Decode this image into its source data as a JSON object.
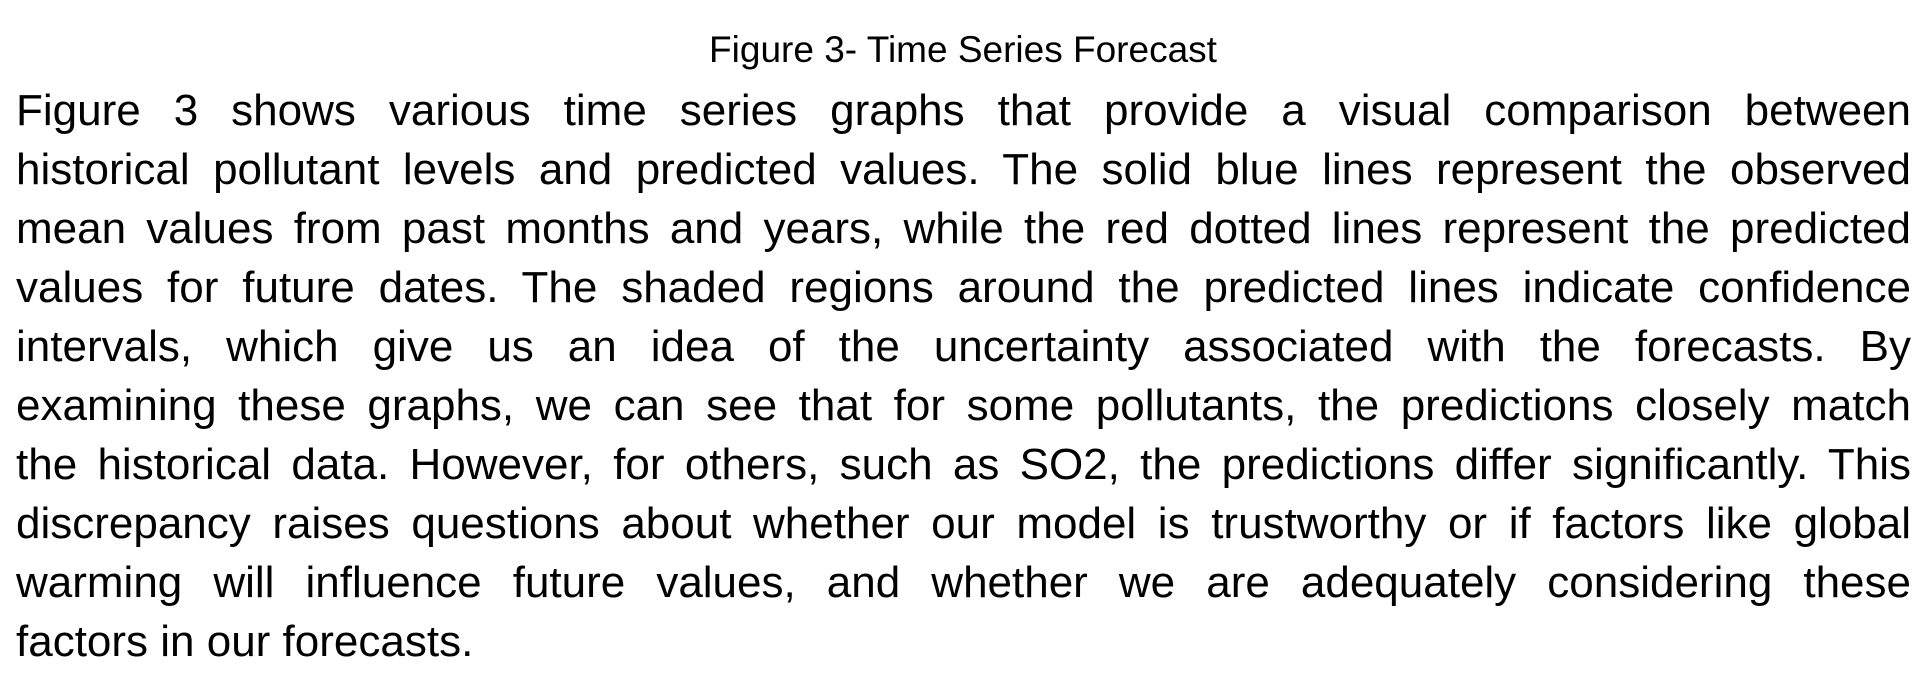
{
  "figure_caption": "Figure 3- Time Series Forecast",
  "paragraph_lines": [
    "Figure 3 shows various time series graphs that provide a visual comparison between",
    "historical pollutant levels and predicted values. The solid blue lines represent the observed",
    "mean values from past months and years, while the red dotted lines represent the predicted",
    "values for future dates. The shaded regions around the predicted lines indicate confidence",
    "intervals, which give us an idea of the uncertainty associated with the forecasts. By",
    "examining these graphs, we can see that for some pollutants, the predictions closely match",
    "the historical data. However, for others, such as SO2, the predictions differ significantly. This",
    "discrepancy raises questions about whether our model is trustworthy or if factors like global",
    "warming will influence future values, and whether we are adequately considering these",
    "factors in our forecasts."
  ]
}
